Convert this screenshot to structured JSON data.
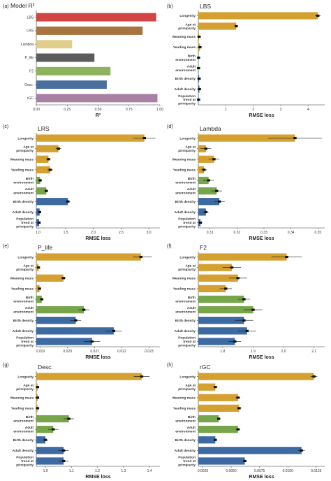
{
  "colors": {
    "longevity": "#d4a030",
    "age": "#d4a030",
    "weaning": "#d4a030",
    "yearling": "#d4a030",
    "birth_env": "#76a54a",
    "adult_env": "#76a54a",
    "birth_density": "#3d6aa3",
    "adult_density": "#3d6aa3",
    "pop_trend": "#3d6aa3"
  },
  "chart_data": [
    {
      "panel": "(a)",
      "type": "bar",
      "orientation": "horizontal",
      "title": "Model R²",
      "xlabel": "R²",
      "xlim": [
        0,
        1
      ],
      "xticks": [
        "0.00",
        "0.25",
        "0.50",
        "0.75",
        "1.00"
      ],
      "xtick_values": [
        0,
        0.25,
        0.5,
        0.75,
        1.0
      ],
      "categories": [
        "LBS",
        "LRS",
        "Lambda",
        "P_life",
        "F2",
        "Desc.",
        "rGC"
      ],
      "values": [
        0.97,
        0.86,
        0.29,
        0.47,
        0.6,
        0.57,
        0.98
      ],
      "colors": [
        "#d24545",
        "#a8743f",
        "#e0cf8c",
        "#5c5c5c",
        "#8fb35c",
        "#4a6f9e",
        "#a97fa3"
      ]
    },
    {
      "panel": "(b)",
      "type": "bar",
      "orientation": "horizontal",
      "title": "LBS",
      "xlabel": "RMSE loss",
      "xlim": [
        0,
        4.6
      ],
      "xticks": [
        "1",
        "2",
        "3",
        "4"
      ],
      "xtick_values": [
        1,
        2,
        3,
        4
      ],
      "categories": [
        "Longevity",
        "Age at\nprimiparity",
        "Weaning mass",
        "Yearling mass",
        "Birth\nenvironment",
        "Adult\nenvironment",
        "Birth density",
        "Adult density",
        "Population\ntrend at\nprimiparity"
      ],
      "values": [
        4.35,
        1.38,
        0.03,
        0.06,
        0.01,
        0.01,
        0.03,
        0.04,
        0.01
      ],
      "err_lo": [
        4.25,
        1.33,
        0.01,
        0.03,
        0.0,
        0.0,
        0.01,
        0.02,
        0.0
      ],
      "err_hi": [
        4.45,
        1.43,
        0.05,
        0.09,
        0.02,
        0.02,
        0.05,
        0.06,
        0.02
      ]
    },
    {
      "panel": "(c)",
      "type": "bar",
      "orientation": "horizontal",
      "title": "LRS",
      "xlabel": "RMSE loss",
      "xlim": [
        0.97,
        3.2
      ],
      "xticks": [
        "1.0",
        "1.5",
        "2.0",
        "2.5",
        "3.0"
      ],
      "xtick_values": [
        1.0,
        1.5,
        2.0,
        2.5,
        3.0
      ],
      "categories": [
        "Longevity",
        "Age at\nprimiparity",
        "Weaning mass",
        "Yearling mass",
        "Birth\nenvironment",
        "Adult\nenvironment",
        "Birth density",
        "Adult density",
        "Population\ntrend at\nprimiparity"
      ],
      "values": [
        2.92,
        1.37,
        1.19,
        1.22,
        1.04,
        1.15,
        1.54,
        1.03,
        1.02
      ],
      "err_lo": [
        2.72,
        1.32,
        1.15,
        1.17,
        1.02,
        1.12,
        1.5,
        1.01,
        1.01
      ],
      "err_hi": [
        3.12,
        1.42,
        1.23,
        1.27,
        1.06,
        1.18,
        1.58,
        1.05,
        1.03
      ]
    },
    {
      "panel": "(d)",
      "type": "bar",
      "orientation": "horizontal",
      "title": "Lambda",
      "xlabel": "RMSE loss",
      "xlim": [
        0.3057,
        0.3525
      ],
      "xticks": [
        "0.31",
        "0.32",
        "0.33",
        "0.34",
        "0.35"
      ],
      "xtick_values": [
        0.31,
        0.32,
        0.33,
        0.34,
        0.35
      ],
      "categories": [
        "Longevity",
        "Age at\nprimiparity",
        "Weaning mass",
        "Yearling mass",
        "Birth\nenvironment",
        "Adult\nenvironment",
        "Birth density",
        "Adult density",
        "Population\ntrend at\nprimiparity"
      ],
      "values": [
        0.3415,
        0.3085,
        0.3115,
        0.3078,
        0.3095,
        0.3125,
        0.3135,
        0.3085,
        0.3065
      ],
      "err_lo": [
        0.3315,
        0.3065,
        0.3095,
        0.3068,
        0.3075,
        0.3105,
        0.3115,
        0.3075,
        0.306
      ],
      "err_hi": [
        0.3515,
        0.3105,
        0.3135,
        0.3088,
        0.3115,
        0.3145,
        0.3155,
        0.3095,
        0.307
      ]
    },
    {
      "panel": "(e)",
      "type": "bar",
      "orientation": "horizontal",
      "title": "P_life",
      "xlabel": "RMSE loss",
      "xlim": [
        0.01885,
        0.0234
      ],
      "xticks": [
        "0.019",
        "0.020",
        "0.021",
        "0.022",
        "0.023"
      ],
      "xtick_values": [
        0.019,
        0.02,
        0.021,
        0.022,
        0.023
      ],
      "categories": [
        "Longevity",
        "Age at\nprimiparity",
        "Weaning mass",
        "Yearling mass",
        "Birth\nenvironment",
        "Adult\nenvironment",
        "Birth density",
        "Adult density",
        "Population\ntrend at\nprimiparity"
      ],
      "values": [
        0.0227,
        0.01893,
        0.01985,
        0.01897,
        0.01905,
        0.0206,
        0.0203,
        0.0217,
        0.0209
      ],
      "err_lo": [
        0.0224,
        0.0189,
        0.01975,
        0.01893,
        0.01899,
        0.0204,
        0.0201,
        0.0214,
        0.0206
      ],
      "err_hi": [
        0.0231,
        0.01897,
        0.01995,
        0.01901,
        0.01911,
        0.0208,
        0.0205,
        0.022,
        0.0212
      ]
    },
    {
      "panel": "(f)",
      "type": "bar",
      "orientation": "horizontal",
      "title": "F2",
      "xlabel": "RMSE loss",
      "xlim": [
        1.72,
        2.135
      ],
      "xticks": [
        "1.8",
        "1.9",
        "2.0",
        "2.1"
      ],
      "xtick_values": [
        1.8,
        1.9,
        2.0,
        2.1
      ],
      "categories": [
        "Longevity",
        "Age at\nprimiparity",
        "Weaning mass",
        "Yearling mass",
        "Birth\nenvironment",
        "Adult\nenvironment",
        "Birth density",
        "Adult density",
        "Population\ntrend at\nprimiparity"
      ],
      "values": [
        2.01,
        1.83,
        1.85,
        1.81,
        1.87,
        1.9,
        1.87,
        1.88,
        1.84
      ],
      "err_lo": [
        1.96,
        1.8,
        1.82,
        1.79,
        1.85,
        1.87,
        1.84,
        1.85,
        1.82
      ],
      "err_hi": [
        2.06,
        1.86,
        1.88,
        1.83,
        1.89,
        1.93,
        1.9,
        1.91,
        1.86
      ]
    },
    {
      "panel": "(g)",
      "type": "bar",
      "orientation": "horizontal",
      "title": "Desc.",
      "xlabel": "RMSE loss",
      "xlim": [
        0.965,
        1.44
      ],
      "xticks": [
        "1.0",
        "1.1",
        "1.2",
        "1.3",
        "1.4"
      ],
      "xtick_values": [
        1.0,
        1.1,
        1.2,
        1.3,
        1.4
      ],
      "categories": [
        "Longevity",
        "Age at\nprimiparity",
        "Weaning mass",
        "Yearling mass",
        "Birth\nenvironment",
        "Adult\nenvironment",
        "Birth density",
        "Adult density",
        "Population\ntrend at\nprimiparity"
      ],
      "values": [
        1.37,
        0.97,
        0.97,
        0.97,
        1.09,
        1.03,
        1.0,
        1.07,
        1.07
      ],
      "err_lo": [
        1.34,
        0.968,
        0.968,
        0.968,
        1.07,
        1.01,
        0.99,
        1.05,
        1.05
      ],
      "err_hi": [
        1.4,
        0.972,
        0.972,
        0.972,
        1.11,
        1.05,
        1.01,
        1.09,
        1.09
      ]
    },
    {
      "panel": "(h)",
      "type": "bar",
      "orientation": "horizontal",
      "title": "rGC",
      "xlabel": "RMSE loss",
      "xlim": [
        0.0021,
        0.01325
      ],
      "xticks": [
        "0.0025",
        "0.0050",
        "0.0075",
        "0.0100",
        "0.0125"
      ],
      "xtick_values": [
        0.0025,
        0.005,
        0.0075,
        0.01,
        0.0125
      ],
      "categories": [
        "Longevity",
        "Age at\nprimiparity",
        "Weaning mass",
        "Yearling mass",
        "Birth\nenvironment",
        "Adult\nenvironment",
        "Birth density",
        "Adult density",
        "Population\ntrend at\nprimiparity"
      ],
      "values": [
        0.0123,
        0.0036,
        0.0056,
        0.0057,
        0.0039,
        0.0056,
        0.0036,
        0.0112,
        0.0062
      ],
      "err_lo": [
        0.012,
        0.0034,
        0.0054,
        0.0055,
        0.0038,
        0.0054,
        0.0035,
        0.0109,
        0.006
      ],
      "err_hi": [
        0.0126,
        0.0038,
        0.0058,
        0.0059,
        0.004,
        0.0058,
        0.0037,
        0.0115,
        0.0064
      ]
    }
  ]
}
